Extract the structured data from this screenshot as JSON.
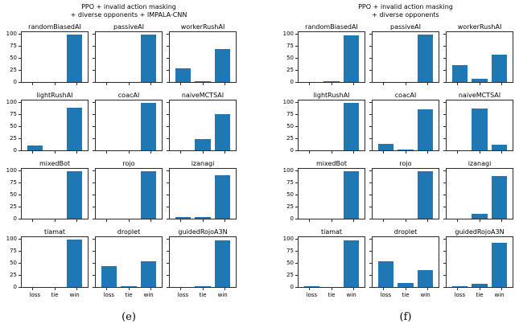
{
  "chart_data": [
    {
      "type": "bar",
      "layout": "4x3-subplot-grid",
      "title": "PPO + invalid action masking + diverse opponents + IMPALA-CNN",
      "title_lines": [
        "PPO + invalid action masking",
        "+ diverse opponents + IMPALA-CNN"
      ],
      "caption": "(e)",
      "categories": [
        "loss",
        "tie",
        "win"
      ],
      "y_ticks": [
        0,
        25,
        50,
        75,
        100
      ],
      "ylim": [
        0,
        105
      ],
      "bar_color": "#1f77b4",
      "series": [
        {
          "name": "randomBiasedAI",
          "values": [
            0,
            0,
            100
          ]
        },
        {
          "name": "passiveAI",
          "values": [
            0,
            0,
            100
          ]
        },
        {
          "name": "workerRushAI",
          "values": [
            29,
            2,
            69
          ]
        },
        {
          "name": "lightRushAI",
          "values": [
            11,
            0,
            89
          ]
        },
        {
          "name": "coacAI",
          "values": [
            0,
            0,
            100
          ]
        },
        {
          "name": "naiveMCTSAI",
          "values": [
            0,
            24,
            76
          ]
        },
        {
          "name": "mixedBot",
          "values": [
            0,
            0,
            100
          ]
        },
        {
          "name": "rojo",
          "values": [
            0,
            0,
            100
          ]
        },
        {
          "name": "izanagi",
          "values": [
            3,
            3,
            92
          ]
        },
        {
          "name": "tiamat",
          "values": [
            0,
            0,
            100
          ]
        },
        {
          "name": "droplet",
          "values": [
            44,
            2,
            54
          ]
        },
        {
          "name": "guidedRojoA3N",
          "values": [
            0,
            1,
            99
          ]
        }
      ]
    },
    {
      "type": "bar",
      "layout": "4x3-subplot-grid",
      "title": "PPO + invalid action masking + diverse opponents",
      "title_lines": [
        "PPO + invalid action masking",
        "+ diverse opponents"
      ],
      "caption": "(f)",
      "categories": [
        "loss",
        "tie",
        "win"
      ],
      "y_ticks": [
        0,
        25,
        50,
        75,
        100
      ],
      "ylim": [
        0,
        105
      ],
      "bar_color": "#1f77b4",
      "series": [
        {
          "name": "randomBiasedAI",
          "values": [
            0,
            2,
            99
          ]
        },
        {
          "name": "passiveAI",
          "values": [
            0,
            0,
            100
          ]
        },
        {
          "name": "workerRushAI",
          "values": [
            35,
            7,
            58
          ]
        },
        {
          "name": "lightRushAI",
          "values": [
            0,
            0,
            100
          ]
        },
        {
          "name": "coacAI",
          "values": [
            13,
            1,
            86
          ]
        },
        {
          "name": "naiveMCTSAI",
          "values": [
            0,
            88,
            12
          ]
        },
        {
          "name": "mixedBot",
          "values": [
            0,
            0,
            100
          ]
        },
        {
          "name": "rojo",
          "values": [
            0,
            0,
            100
          ]
        },
        {
          "name": "izanagi",
          "values": [
            0,
            10,
            90
          ]
        },
        {
          "name": "tiamat",
          "values": [
            1,
            0,
            99
          ]
        },
        {
          "name": "droplet",
          "values": [
            55,
            8,
            36
          ]
        },
        {
          "name": "guidedRojoA3N",
          "values": [
            1,
            6,
            93
          ]
        }
      ]
    }
  ]
}
